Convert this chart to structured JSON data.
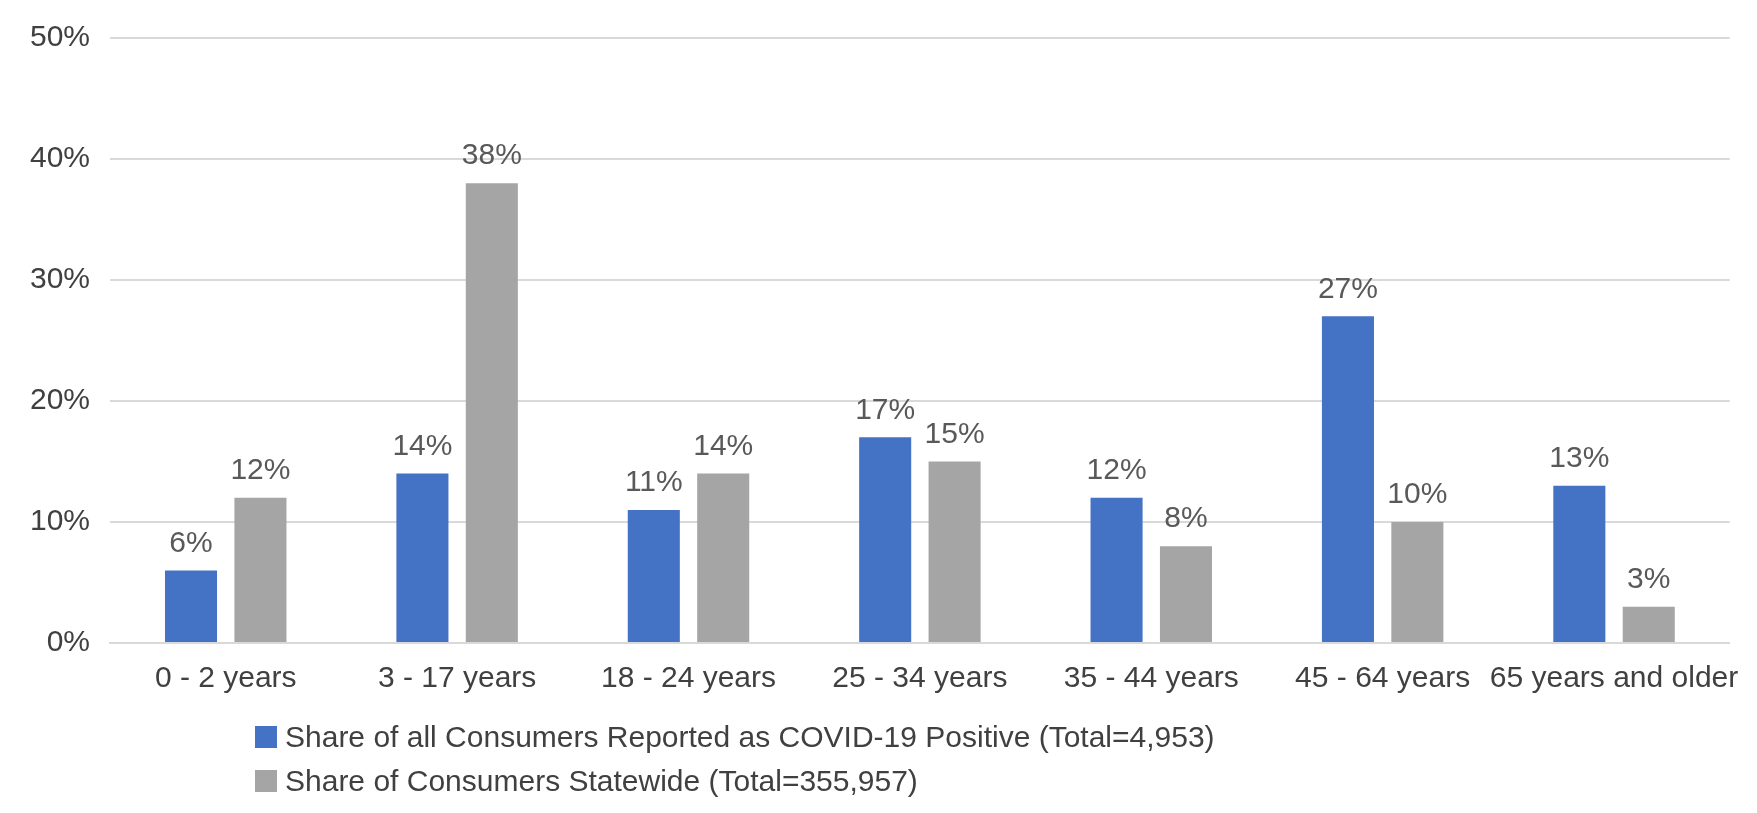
{
  "chart_data": {
    "type": "bar",
    "categories": [
      "0 - 2 years",
      "3 - 17 years",
      "18 - 24 years",
      "25 - 34 years",
      "35 - 44 years",
      "45 - 64 years",
      "65 years and older"
    ],
    "series": [
      {
        "name": "Share of all Consumers Reported as COVID-19 Positive (Total=4,953)",
        "color": "#4472c4",
        "values": [
          6,
          14,
          11,
          17,
          12,
          27,
          13
        ],
        "value_labels": [
          "6%",
          "14%",
          "11%",
          "17%",
          "12%",
          "27%",
          "13%"
        ]
      },
      {
        "name": "Share of Consumers Statewide (Total=355,957)",
        "color": "#a5a5a5",
        "values": [
          12,
          38,
          14,
          15,
          8,
          10,
          3
        ],
        "value_labels": [
          "12%",
          "38%",
          "14%",
          "15%",
          "8%",
          "10%",
          "3%"
        ]
      }
    ],
    "ylim": [
      0,
      50
    ],
    "yticks": [
      {
        "value": 0,
        "label": "0%"
      },
      {
        "value": 10,
        "label": "10%"
      },
      {
        "value": 20,
        "label": "20%"
      },
      {
        "value": 30,
        "label": "30%"
      },
      {
        "value": 40,
        "label": "40%"
      },
      {
        "value": 50,
        "label": "50%"
      }
    ],
    "grid": "y",
    "legend": "bottom"
  }
}
